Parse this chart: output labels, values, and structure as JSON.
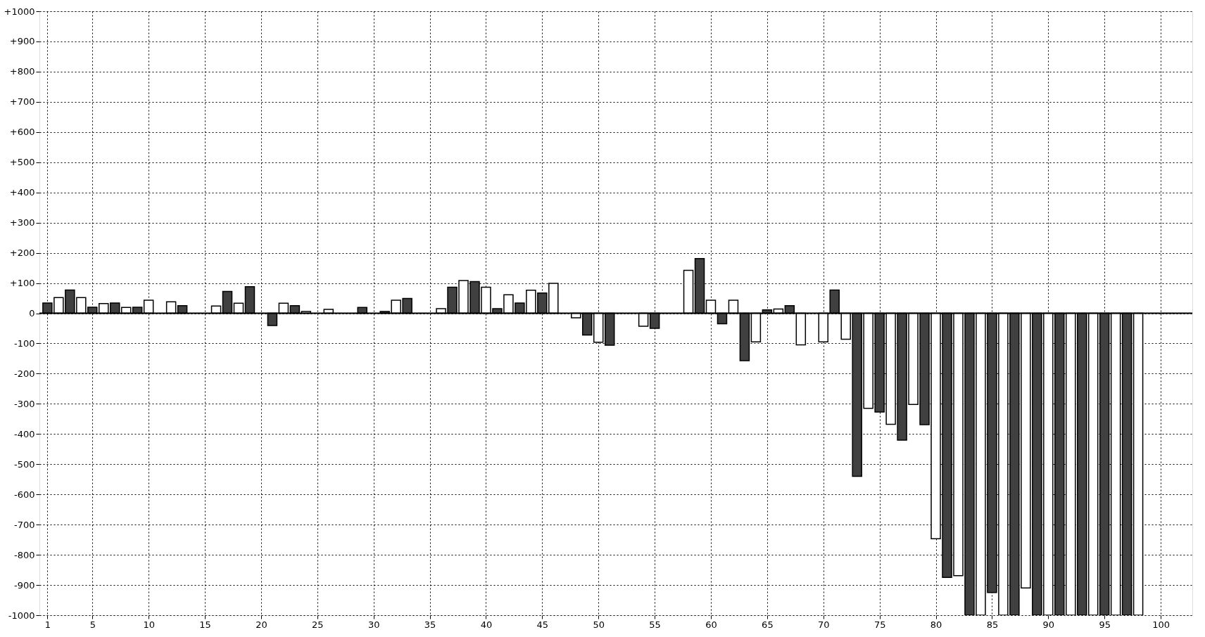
{
  "chart_data": {
    "type": "bar",
    "series": [
      {
        "color": "#404040",
        "x": [
          1,
          3,
          5,
          7,
          9,
          11,
          13,
          15,
          17,
          19,
          21,
          23,
          25,
          27,
          29,
          31,
          33,
          35,
          37,
          39,
          41,
          43,
          45,
          47,
          49,
          51,
          53,
          55,
          57,
          59,
          61,
          63,
          65,
          67,
          69,
          71,
          73,
          75,
          77,
          79,
          81,
          83,
          85,
          87,
          89,
          91,
          93,
          95,
          97
        ],
        "values": [
          34,
          77,
          20,
          34,
          20,
          null,
          25,
          null,
          72,
          88,
          -41,
          25,
          null,
          null,
          19,
          6,
          49,
          null,
          86,
          105,
          15,
          34,
          67,
          null,
          -72,
          -106,
          null,
          -50,
          null,
          181,
          -35,
          -157,
          11,
          25,
          null,
          77,
          -540,
          -327,
          -420,
          -369,
          -875,
          -1000,
          -925,
          -1000,
          -1000,
          -1000,
          -1000,
          -1000,
          -1000
        ]
      },
      {
        "color": "#ffffff",
        "x": [
          2,
          4,
          6,
          8,
          10,
          12,
          14,
          16,
          18,
          20,
          22,
          24,
          26,
          28,
          30,
          32,
          34,
          36,
          38,
          40,
          42,
          44,
          46,
          48,
          50,
          52,
          54,
          56,
          58,
          60,
          62,
          64,
          66,
          68,
          70,
          72,
          74,
          76,
          78,
          80,
          82,
          84,
          86,
          88,
          90,
          92,
          94,
          96,
          98
        ],
        "values": [
          52,
          52,
          32,
          19,
          43,
          38,
          null,
          24,
          33,
          null,
          33,
          6,
          13,
          null,
          null,
          43,
          null,
          15,
          108,
          86,
          61,
          76,
          99,
          -15,
          -96,
          null,
          -43,
          null,
          142,
          43,
          43,
          -95,
          14,
          -105,
          -95,
          -86,
          -315,
          -368,
          -302,
          -747,
          -869,
          -1000,
          -1000,
          -910,
          -1000,
          -1000,
          -1000,
          -1000,
          -1000
        ]
      }
    ],
    "xlim": [
      0.6,
      102.5
    ],
    "xticks": [
      1,
      5,
      10,
      15,
      20,
      25,
      30,
      35,
      40,
      45,
      50,
      55,
      60,
      65,
      70,
      75,
      80,
      85,
      90,
      95,
      100
    ],
    "ylim": [
      -1000,
      1000
    ],
    "yticks": [
      -1000,
      -900,
      -800,
      -700,
      -600,
      -500,
      -400,
      -300,
      -200,
      -100,
      0,
      {
        "value": 100,
        "label": "+100"
      },
      {
        "value": 200,
        "label": "+200"
      },
      {
        "value": 300,
        "label": "+300"
      },
      {
        "value": 400,
        "label": "+400"
      },
      {
        "value": 500,
        "label": "+500"
      },
      {
        "value": 600,
        "label": "+600"
      },
      {
        "value": 700,
        "label": "+700"
      },
      {
        "value": 800,
        "label": "+800"
      },
      {
        "value": 900,
        "label": "+900"
      },
      {
        "value": 1000,
        "label": "+1000"
      }
    ],
    "ref_lines": [
      {
        "axis": "y",
        "value": 0
      }
    ],
    "grid": true
  }
}
